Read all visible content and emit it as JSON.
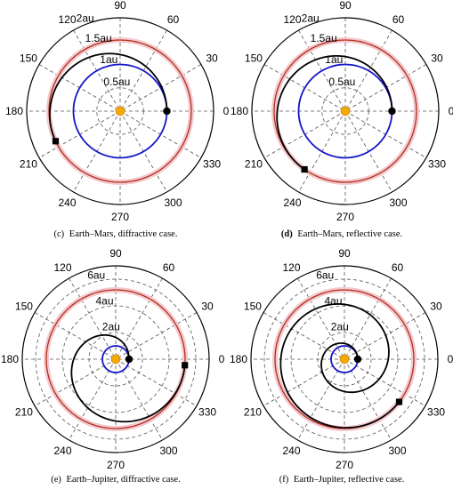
{
  "figure_captions": [
    {
      "label": "(c)",
      "text": "Earth–Mars, diffractive case."
    },
    {
      "label": "(d)",
      "text": "Earth–Mars, reflective case."
    },
    {
      "label": "(e)",
      "text": "Earth–Jupiter, diffractive case."
    },
    {
      "label": "(f)",
      "text": "Earth–Jupiter, reflective case."
    }
  ],
  "colors": {
    "grid": "#555555",
    "sun": "#f5a800",
    "earth_orbit": "#1414c8",
    "target_orbit": "#b03020",
    "target_orbit_halo": "#f4c8cc",
    "trajectory": "#000000",
    "boundary": "#000000"
  },
  "chart_data": [
    {
      "panel": "c",
      "type": "polar",
      "r_max": 2.0,
      "angle_ticks": [
        "90",
        "60",
        "30",
        "0",
        "330",
        "300",
        "270",
        "240",
        "210",
        "180",
        "150",
        "120"
      ],
      "angle_tick_values": [
        90,
        60,
        30,
        0,
        330,
        300,
        270,
        240,
        210,
        180,
        150,
        120
      ],
      "radial_labels": [
        "0.5au",
        "1au",
        "1.5au",
        "2au"
      ],
      "radial_label_values": [
        0.5,
        1.0,
        1.5,
        2.0
      ],
      "radial_label_angles_deg": [
        98,
        104,
        108,
        112
      ],
      "earth_orbit_r": 1.0,
      "target_orbit_r": 1.524,
      "trajectory": {
        "r_start": 1.0,
        "theta_start_deg": 0,
        "r_end": 1.524,
        "theta_end_deg": 205
      },
      "start_marker": {
        "r": 1.0,
        "theta_deg": 0
      },
      "end_marker": {
        "r": 1.524,
        "theta_deg": 205
      }
    },
    {
      "panel": "d",
      "type": "polar",
      "r_max": 2.0,
      "angle_ticks": [
        "90",
        "60",
        "30",
        "0",
        "330",
        "300",
        "270",
        "240",
        "210",
        "180",
        "150",
        "120"
      ],
      "angle_tick_values": [
        90,
        60,
        30,
        0,
        330,
        300,
        270,
        240,
        210,
        180,
        150,
        120
      ],
      "radial_labels": [
        "0.5au",
        "1au",
        "1.5au",
        "2au"
      ],
      "radial_label_values": [
        0.5,
        1.0,
        1.5,
        2.0
      ],
      "radial_label_angles_deg": [
        98,
        104,
        108,
        112
      ],
      "earth_orbit_r": 1.0,
      "target_orbit_r": 1.524,
      "trajectory": {
        "r_start": 1.0,
        "theta_start_deg": 0,
        "r_end": 1.524,
        "theta_end_deg": 235
      },
      "start_marker": {
        "r": 1.0,
        "theta_deg": 0
      },
      "end_marker": {
        "r": 1.524,
        "theta_deg": 235
      }
    },
    {
      "panel": "e",
      "type": "polar",
      "r_max": 7.0,
      "angle_ticks": [
        "90",
        "60",
        "30",
        "0",
        "330",
        "300",
        "270",
        "240",
        "210",
        "180",
        "150",
        "120"
      ],
      "angle_tick_values": [
        90,
        60,
        30,
        0,
        330,
        300,
        270,
        240,
        210,
        180,
        150,
        120
      ],
      "radial_labels": [
        "2au",
        "4au",
        "6au"
      ],
      "radial_label_values": [
        2.0,
        4.0,
        6.0
      ],
      "radial_label_angles_deg": [
        100,
        102,
        104
      ],
      "earth_orbit_r": 1.0,
      "target_orbit_r": 5.2,
      "trajectory": {
        "r_start": 1.0,
        "theta_start_deg": 0,
        "r_end": 5.2,
        "theta_end_deg": 355
      },
      "start_marker": {
        "r": 1.0,
        "theta_deg": 0
      },
      "end_marker": {
        "r": 5.2,
        "theta_deg": 355
      }
    },
    {
      "panel": "f",
      "type": "polar",
      "r_max": 7.0,
      "angle_ticks": [
        "90",
        "60",
        "30",
        "0",
        "330",
        "300",
        "270",
        "240",
        "210",
        "180",
        "150",
        "120"
      ],
      "angle_tick_values": [
        90,
        60,
        30,
        0,
        330,
        300,
        270,
        240,
        210,
        180,
        150,
        120
      ],
      "radial_labels": [
        "2au",
        "4au",
        "6au"
      ],
      "radial_label_values": [
        2.0,
        4.0,
        6.0
      ],
      "radial_label_angles_deg": [
        100,
        102,
        104
      ],
      "earth_orbit_r": 1.0,
      "target_orbit_r": 5.2,
      "trajectory": {
        "r_start": 1.0,
        "theta_start_deg": 0,
        "r_end": 5.2,
        "theta_end_deg": 682
      },
      "start_marker": {
        "r": 1.0,
        "theta_deg": 0
      },
      "end_marker": {
        "r": 5.2,
        "theta_deg": 682
      }
    }
  ]
}
